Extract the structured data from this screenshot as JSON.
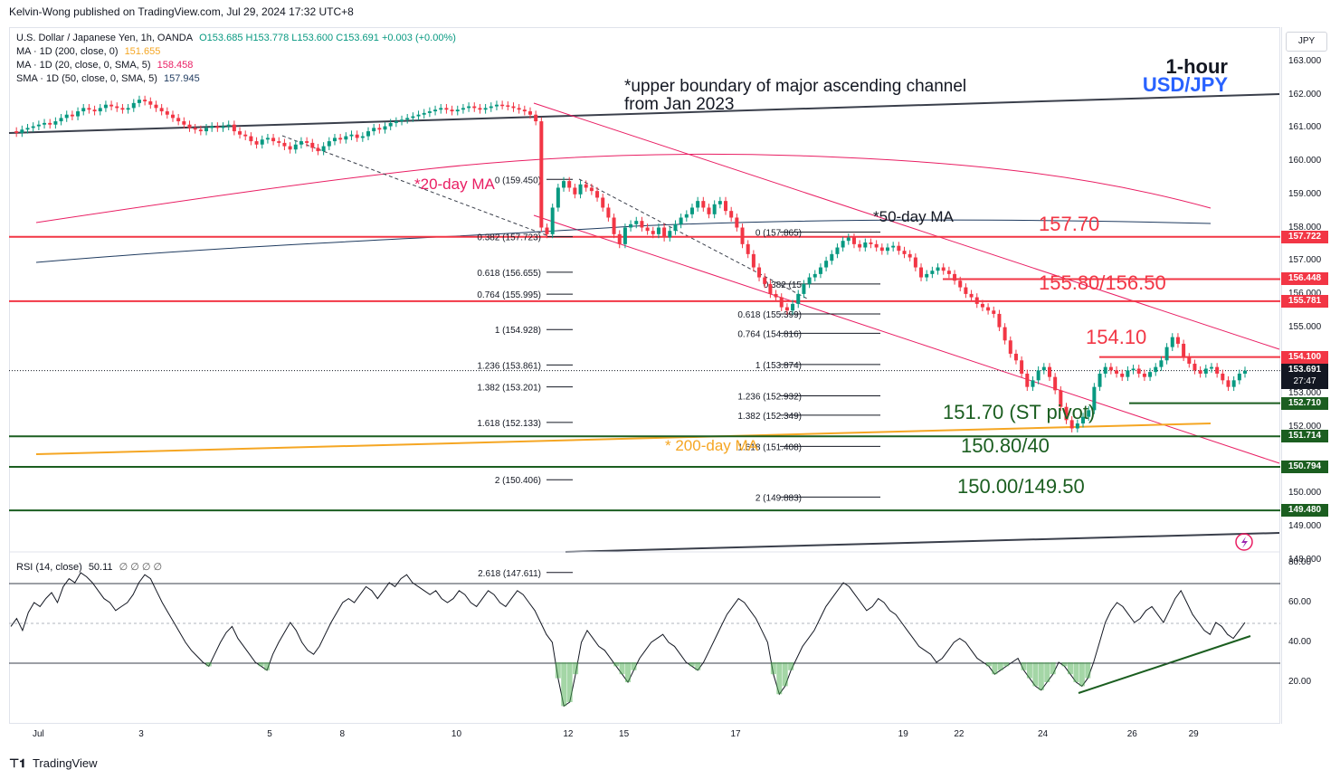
{
  "publisher": "Kelvin-Wong published on TradingView.com, Jul 29, 2024 17:32 UTC+8",
  "legend": {
    "symbol": "U.S. Dollar / Japanese Yen, 1h, OANDA",
    "ohlc": "O153.685  H153.778  L153.600  C153.691  +0.003 (+0.00%)",
    "ma200": "MA · 1D (200, close, 0)",
    "ma200_val": "151.655",
    "ma20": "MA · 1D (20, close, 0, SMA, 5)",
    "ma20_val": "158.458",
    "sma50": "SMA · 1D (50, close, 0, SMA, 5)",
    "sma50_val": "157.945",
    "rsi": "RSI (14, close)",
    "rsi_val": "50.11",
    "rsi_extra": "∅ ∅ ∅ ∅"
  },
  "currency_button": "JPY",
  "title_line1": "1-hour",
  "title_line2": "USD/JPY",
  "annotations": {
    "channel_line1": "*upper boundary of major ascending channel",
    "channel_line2": "from Jan 2023",
    "ma20_label": "*20-day MA",
    "ma50_label": "*50-day MA",
    "ma200_label": "* 200-day MA",
    "r1": "157.70",
    "r2": "155.80/156.50",
    "r3": "154.10",
    "s1": "151.70 (ST pivot)",
    "s2": "150.80/40",
    "s3": "150.00/149.50"
  },
  "fib_left": [
    {
      "text": "0 (159.450)",
      "v": 159.45
    },
    {
      "text": "0.382 (157.723)",
      "v": 157.723
    },
    {
      "text": "0.618 (156.655)",
      "v": 156.655
    },
    {
      "text": "0.764 (155.995)",
      "v": 155.995
    },
    {
      "text": "1 (154.928)",
      "v": 154.928
    },
    {
      "text": "1.236 (153.861)",
      "v": 153.861
    },
    {
      "text": "1.382 (153.201)",
      "v": 153.201
    },
    {
      "text": "1.618 (152.133)",
      "v": 152.133
    },
    {
      "text": "2 (150.406)",
      "v": 150.406
    },
    {
      "text": "2.618 (147.611)",
      "v": 147.611
    }
  ],
  "fib_right": [
    {
      "text": "0 (157.865)",
      "v": 157.865
    },
    {
      "text": "0.382 (15",
      "v": 156.3
    },
    {
      "text": "0.618 (155.399)",
      "v": 155.399
    },
    {
      "text": "0.764 (154.816)",
      "v": 154.816
    },
    {
      "text": "1 (153.874)",
      "v": 153.874
    },
    {
      "text": "1.236 (152.932)",
      "v": 152.932
    },
    {
      "text": "1.382 (152.349)",
      "v": 152.349
    },
    {
      "text": "1.618 (151.408)",
      "v": 151.408
    },
    {
      "text": "2 (149.883)",
      "v": 149.883
    }
  ],
  "price_badges": [
    {
      "text": "157.722",
      "v": 157.722,
      "color": "#f23645"
    },
    {
      "text": "156.448",
      "v": 156.448,
      "color": "#f23645"
    },
    {
      "text": "155.781",
      "v": 155.781,
      "color": "#f23645"
    },
    {
      "text": "154.100",
      "v": 154.1,
      "color": "#f23645"
    },
    {
      "text": "152.710",
      "v": 152.71,
      "color": "#1b5e20"
    },
    {
      "text": "151.714",
      "v": 151.714,
      "color": "#1b5e20"
    },
    {
      "text": "150.794",
      "v": 150.794,
      "color": "#1b5e20"
    },
    {
      "text": "149.480",
      "v": 149.48,
      "color": "#1b5e20"
    }
  ],
  "current_price": {
    "text": "153.691",
    "countdown": "27:47",
    "v": 153.691
  },
  "footer": "TradingView",
  "chart_data": {
    "type": "line",
    "y_ticks": [
      "163.000",
      "162.000",
      "161.000",
      "160.000",
      "159.000",
      "158.000",
      "157.000",
      "156.000",
      "155.000",
      "153.000",
      "152.000",
      "150.000",
      "149.000",
      "148.000"
    ],
    "y_tick_values": [
      163,
      162,
      161,
      160,
      159,
      158,
      157,
      156,
      155,
      153,
      152,
      150,
      149,
      148
    ],
    "rsi_ticks": [
      "80.00",
      "60.00",
      "40.00",
      "20.00"
    ],
    "rsi_tick_values": [
      80,
      60,
      40,
      20
    ],
    "x_ticks": [
      "Jul",
      "3",
      "5",
      "8",
      "10",
      "12",
      "15",
      "17",
      "19",
      "22",
      "24",
      "26",
      "29"
    ],
    "x_tick_idx": [
      0,
      19,
      42,
      55,
      75,
      95,
      105,
      125,
      155,
      165,
      180,
      196,
      207
    ],
    "price_close": [
      160.9,
      160.85,
      160.95,
      161.0,
      161.05,
      161.1,
      161.15,
      161.1,
      161.2,
      161.3,
      161.4,
      161.35,
      161.5,
      161.6,
      161.55,
      161.5,
      161.6,
      161.7,
      161.65,
      161.6,
      161.55,
      161.6,
      161.75,
      161.85,
      161.8,
      161.7,
      161.6,
      161.5,
      161.4,
      161.3,
      161.2,
      161.1,
      161.0,
      160.95,
      160.9,
      161.0,
      161.05,
      161.0,
      161.05,
      161.1,
      160.9,
      160.8,
      160.75,
      160.6,
      160.5,
      160.65,
      160.7,
      160.6,
      160.55,
      160.45,
      160.35,
      160.5,
      160.6,
      160.55,
      160.4,
      160.3,
      160.45,
      160.6,
      160.7,
      160.65,
      160.75,
      160.8,
      160.7,
      160.75,
      160.9,
      161.0,
      160.95,
      161.05,
      161.15,
      161.2,
      161.25,
      161.3,
      161.35,
      161.4,
      161.45,
      161.5,
      161.55,
      161.6,
      161.55,
      161.5,
      161.55,
      161.6,
      161.65,
      161.6,
      161.55,
      161.6,
      161.65,
      161.7,
      161.68,
      161.65,
      161.6,
      161.55,
      161.5,
      161.4,
      161.2,
      158.0,
      157.8,
      158.6,
      159.2,
      159.4,
      159.2,
      159.0,
      159.3,
      159.2,
      159.1,
      158.9,
      158.6,
      158.3,
      157.8,
      157.5,
      158.0,
      158.1,
      158.2,
      158.0,
      157.9,
      157.8,
      158.0,
      157.7,
      157.9,
      158.1,
      158.3,
      158.4,
      158.6,
      158.8,
      158.6,
      158.4,
      158.7,
      158.8,
      158.5,
      158.3,
      158.0,
      157.5,
      157.2,
      156.8,
      156.5,
      156.3,
      156.0,
      155.9,
      155.6,
      155.5,
      155.7,
      156.0,
      156.3,
      156.5,
      156.6,
      156.8,
      157.0,
      157.2,
      157.4,
      157.6,
      157.7,
      157.5,
      157.4,
      157.55,
      157.5,
      157.4,
      157.3,
      157.4,
      157.45,
      157.3,
      157.2,
      157.1,
      156.8,
      156.5,
      156.6,
      156.7,
      156.8,
      156.7,
      156.6,
      156.4,
      156.2,
      156.0,
      155.9,
      155.7,
      155.6,
      155.5,
      155.4,
      155.0,
      154.6,
      154.2,
      154.0,
      153.6,
      153.2,
      153.4,
      153.7,
      153.8,
      153.5,
      153.1,
      152.6,
      152.2,
      151.95,
      152.1,
      152.3,
      152.5,
      153.2,
      153.6,
      153.8,
      153.7,
      153.6,
      153.5,
      153.7,
      153.75,
      153.6,
      153.5,
      153.65,
      153.8,
      154.0,
      154.4,
      154.7,
      154.5,
      154.1,
      153.9,
      153.7,
      153.6,
      153.75,
      153.8,
      153.6,
      153.4,
      153.2,
      153.4,
      153.6,
      153.69
    ],
    "rsi_values": [
      48,
      52,
      46,
      55,
      60,
      58,
      62,
      65,
      60,
      68,
      72,
      70,
      75,
      73,
      70,
      66,
      62,
      60,
      56,
      58,
      60,
      64,
      70,
      74,
      72,
      66,
      60,
      55,
      50,
      45,
      40,
      36,
      33,
      30,
      28,
      34,
      40,
      45,
      48,
      42,
      38,
      34,
      30,
      28,
      26,
      34,
      40,
      45,
      50,
      46,
      40,
      36,
      34,
      38,
      44,
      50,
      55,
      60,
      62,
      60,
      64,
      68,
      66,
      62,
      66,
      70,
      68,
      72,
      74,
      70,
      68,
      66,
      64,
      66,
      62,
      60,
      62,
      66,
      64,
      60,
      58,
      62,
      66,
      64,
      60,
      58,
      62,
      66,
      64,
      60,
      56,
      50,
      44,
      40,
      22,
      8,
      10,
      24,
      40,
      46,
      42,
      38,
      36,
      32,
      28,
      24,
      20,
      26,
      32,
      36,
      40,
      42,
      44,
      40,
      38,
      34,
      30,
      28,
      26,
      30,
      36,
      42,
      48,
      54,
      58,
      62,
      60,
      56,
      52,
      46,
      40,
      24,
      14,
      18,
      26,
      32,
      38,
      42,
      46,
      52,
      58,
      62,
      66,
      70,
      68,
      64,
      60,
      56,
      58,
      62,
      60,
      56,
      54,
      50,
      46,
      42,
      38,
      36,
      34,
      30,
      32,
      36,
      40,
      42,
      40,
      36,
      32,
      30,
      28,
      24,
      26,
      28,
      30,
      32,
      26,
      22,
      18,
      16,
      20,
      24,
      30,
      28,
      24,
      20,
      18,
      22,
      30,
      40,
      50,
      56,
      60,
      58,
      54,
      50,
      52,
      56,
      58,
      54,
      50,
      56,
      62,
      66,
      60,
      54,
      50,
      46,
      44,
      50,
      48,
      44,
      42,
      46,
      50
    ]
  }
}
